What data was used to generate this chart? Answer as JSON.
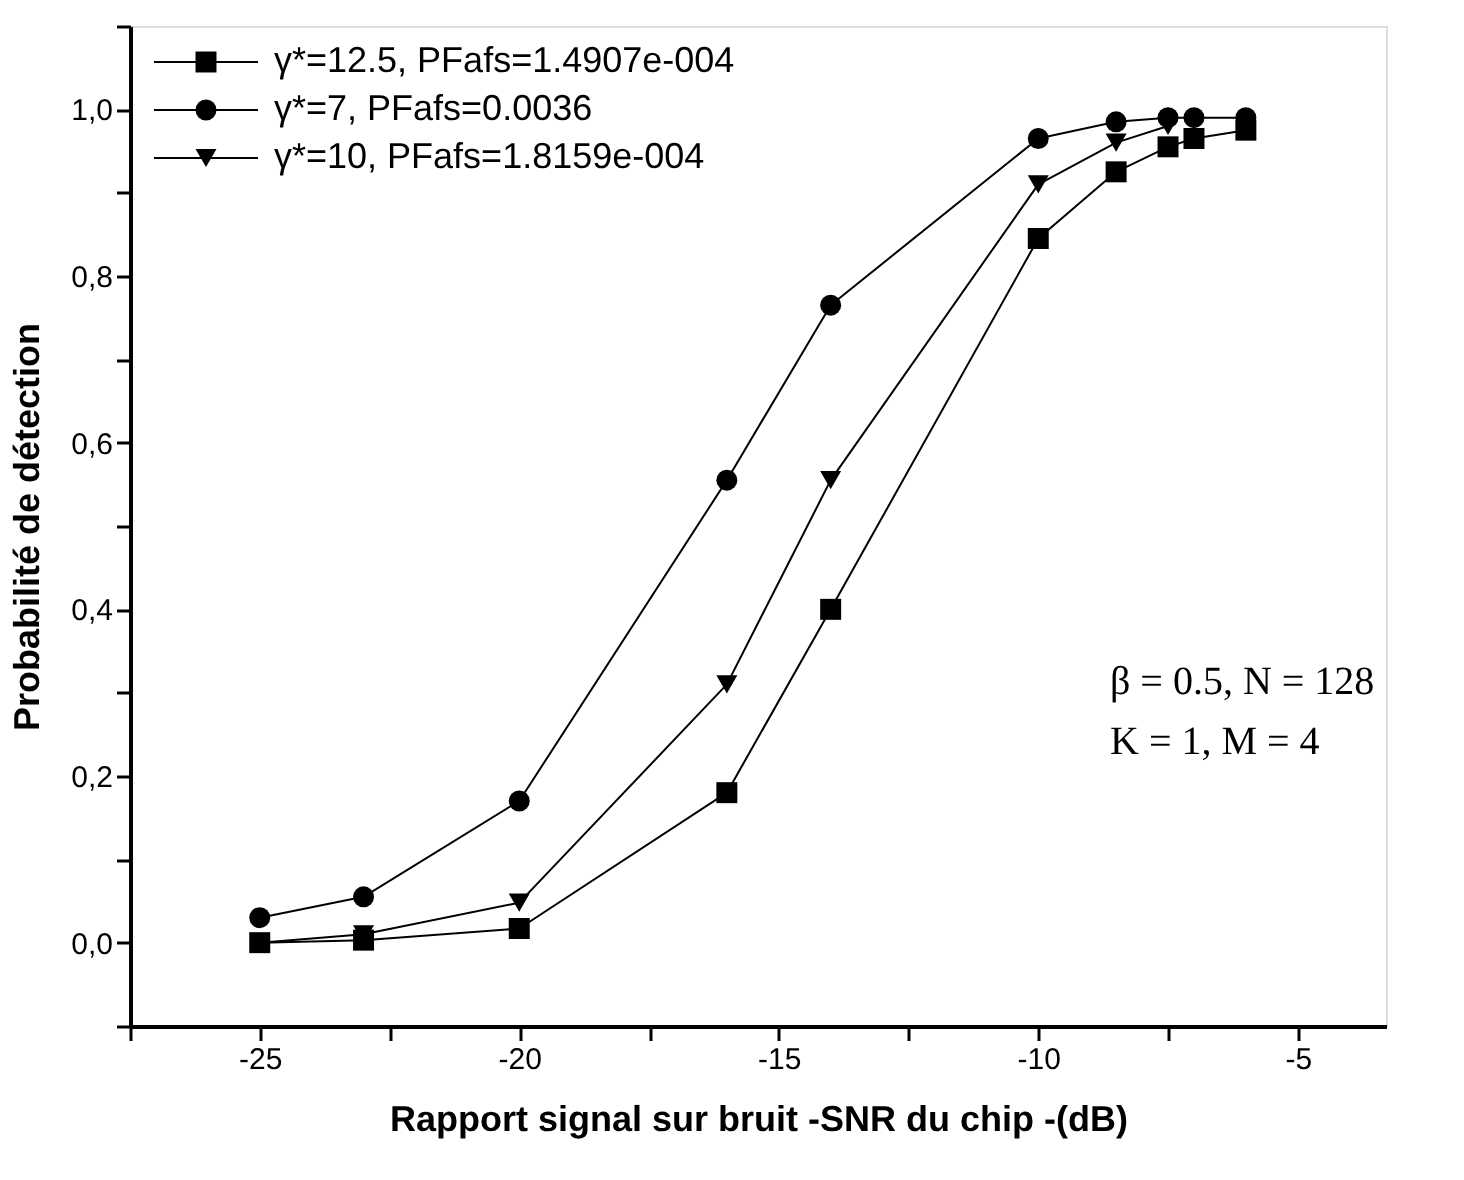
{
  "chart_data": {
    "type": "line",
    "xlabel": "Rapport signal sur bruit -SNR du chip -(dB)",
    "ylabel": "Probabilité de détection",
    "x": [
      -25,
      -23,
      -20,
      -16,
      -14,
      -10,
      -8.5,
      -7.5,
      -7,
      -6
    ],
    "series": [
      {
        "name": "γ*=12.5, PFafs=1.4907e-004",
        "color": "#000000",
        "marker": "square",
        "values": [
          0.0,
          0.003,
          0.017,
          0.18,
          0.4,
          0.845,
          0.925,
          0.955,
          0.965,
          0.975
        ]
      },
      {
        "name": "γ*=7, PFafs=0.0036",
        "color": "#000000",
        "marker": "circle",
        "values": [
          0.03,
          0.055,
          0.17,
          0.555,
          0.765,
          0.965,
          0.985,
          0.99,
          0.99,
          0.99
        ]
      },
      {
        "name": "γ*=10, PFafs=1.8159e-004",
        "color": "#000000",
        "marker": "triangle",
        "values": [
          0.0,
          0.01,
          0.048,
          0.31,
          0.555,
          0.91,
          0.96,
          0.98,
          null,
          null
        ]
      }
    ],
    "xlim": [
      -27.5,
      -3.3
    ],
    "xticks": [
      {
        "value": -27.5,
        "label": null
      },
      -25,
      {
        "value": -22.5,
        "label": null
      },
      -20,
      {
        "value": -17.5,
        "label": null
      },
      -15,
      {
        "value": -12.5,
        "label": null
      },
      -10,
      {
        "value": -7.5,
        "label": null
      },
      -5
    ],
    "ylim": [
      -0.1,
      1.1
    ],
    "yticks": [
      {
        "value": -0.1,
        "label": null
      },
      {
        "value": 0.0,
        "label": "0,0"
      },
      {
        "value": 0.1,
        "label": null
      },
      {
        "value": 0.2,
        "label": "0,2"
      },
      {
        "value": 0.3,
        "label": null
      },
      {
        "value": 0.4,
        "label": "0,4"
      },
      {
        "value": 0.5,
        "label": null
      },
      {
        "value": 0.6,
        "label": "0,6"
      },
      {
        "value": 0.7,
        "label": null
      },
      {
        "value": 0.8,
        "label": "0,8"
      },
      {
        "value": 0.9,
        "label": null
      },
      {
        "value": 1.0,
        "label": "1,0"
      },
      {
        "value": 1.1,
        "label": null
      }
    ],
    "annotations": [
      "β = 0.5, N = 128",
      "K = 1, M = 4"
    ],
    "legend": "top left",
    "grid": false,
    "line_style": "solid"
  }
}
